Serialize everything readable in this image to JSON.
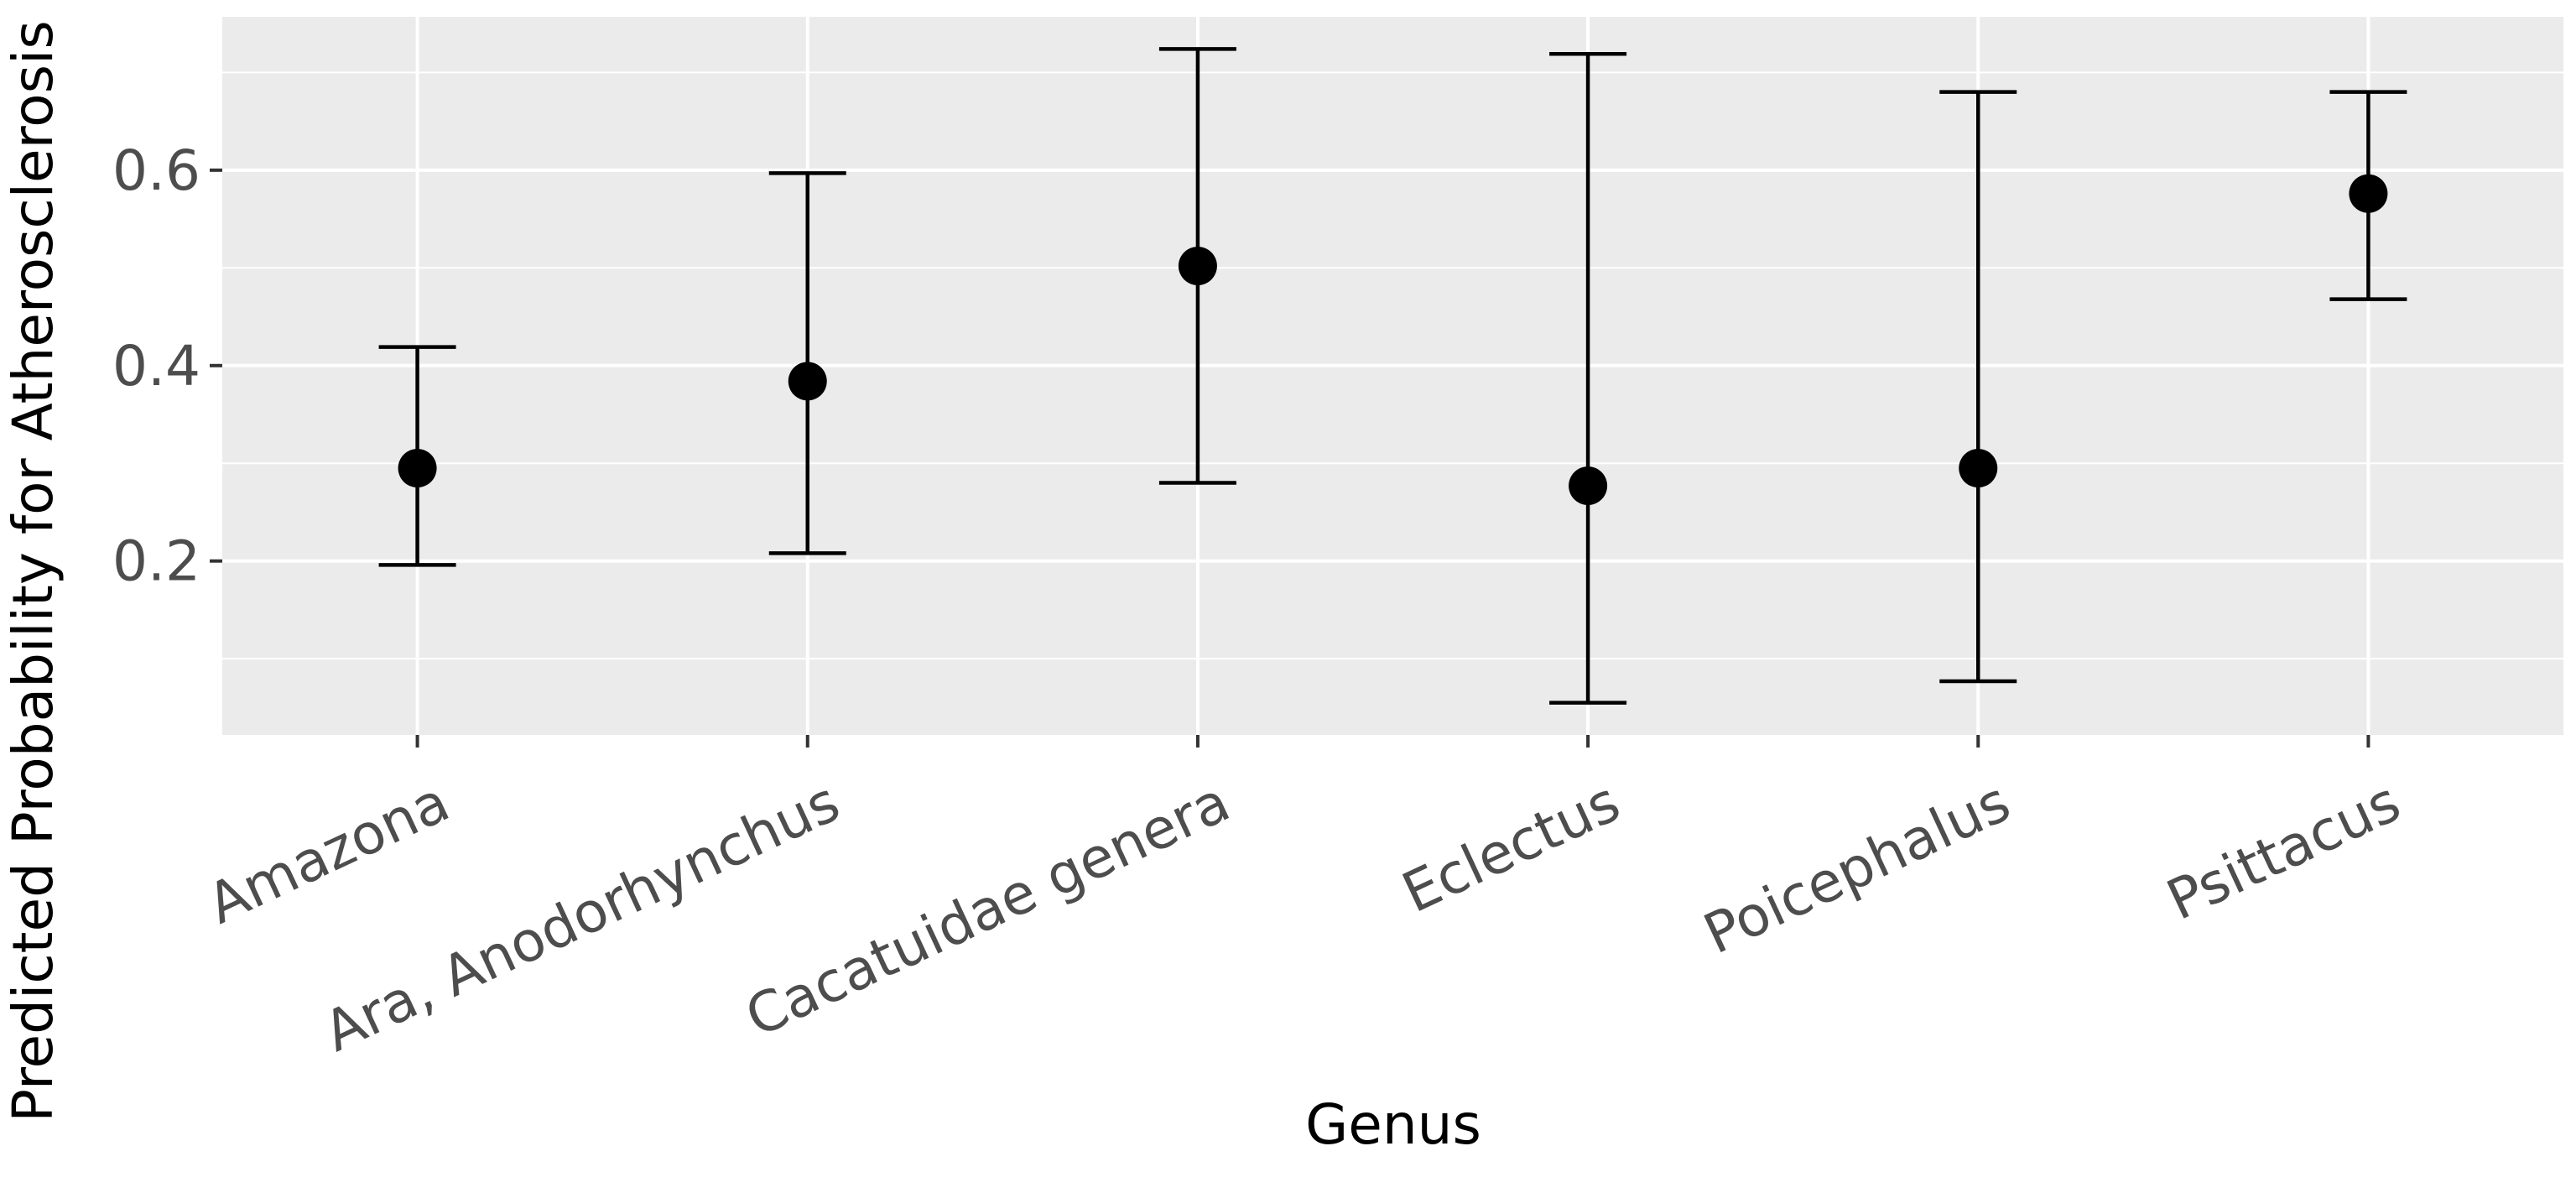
{
  "chart_data": {
    "type": "errorbar",
    "title": "",
    "xlabel": "Genus",
    "ylabel": "Predicted Probability for Atherosclerosis",
    "categories": [
      "Amazona",
      "Ara, Anodorhynchus",
      "Cacatuidae genera",
      "Eclectus",
      "Poicephalus",
      "Psittacus"
    ],
    "series": [
      {
        "values": [
          0.295,
          0.384,
          0.502,
          0.277,
          0.295,
          0.576
        ],
        "lower": [
          0.196,
          0.208,
          0.28,
          0.055,
          0.077,
          0.468
        ],
        "upper": [
          0.419,
          0.597,
          0.724,
          0.719,
          0.68,
          0.68
        ]
      }
    ],
    "yticks": [
      0.2,
      0.4,
      0.6
    ],
    "ytick_labels": [
      "0.2",
      "0.4",
      "0.6"
    ],
    "ylim": [
      0.022,
      0.757
    ],
    "grid": true,
    "legend": "none",
    "colors": {
      "panel": "#ebebeb",
      "grid": "#ffffff",
      "marks": "#000000",
      "tick_text": "#4d4d4d",
      "axis_ticks": "#333333"
    }
  }
}
